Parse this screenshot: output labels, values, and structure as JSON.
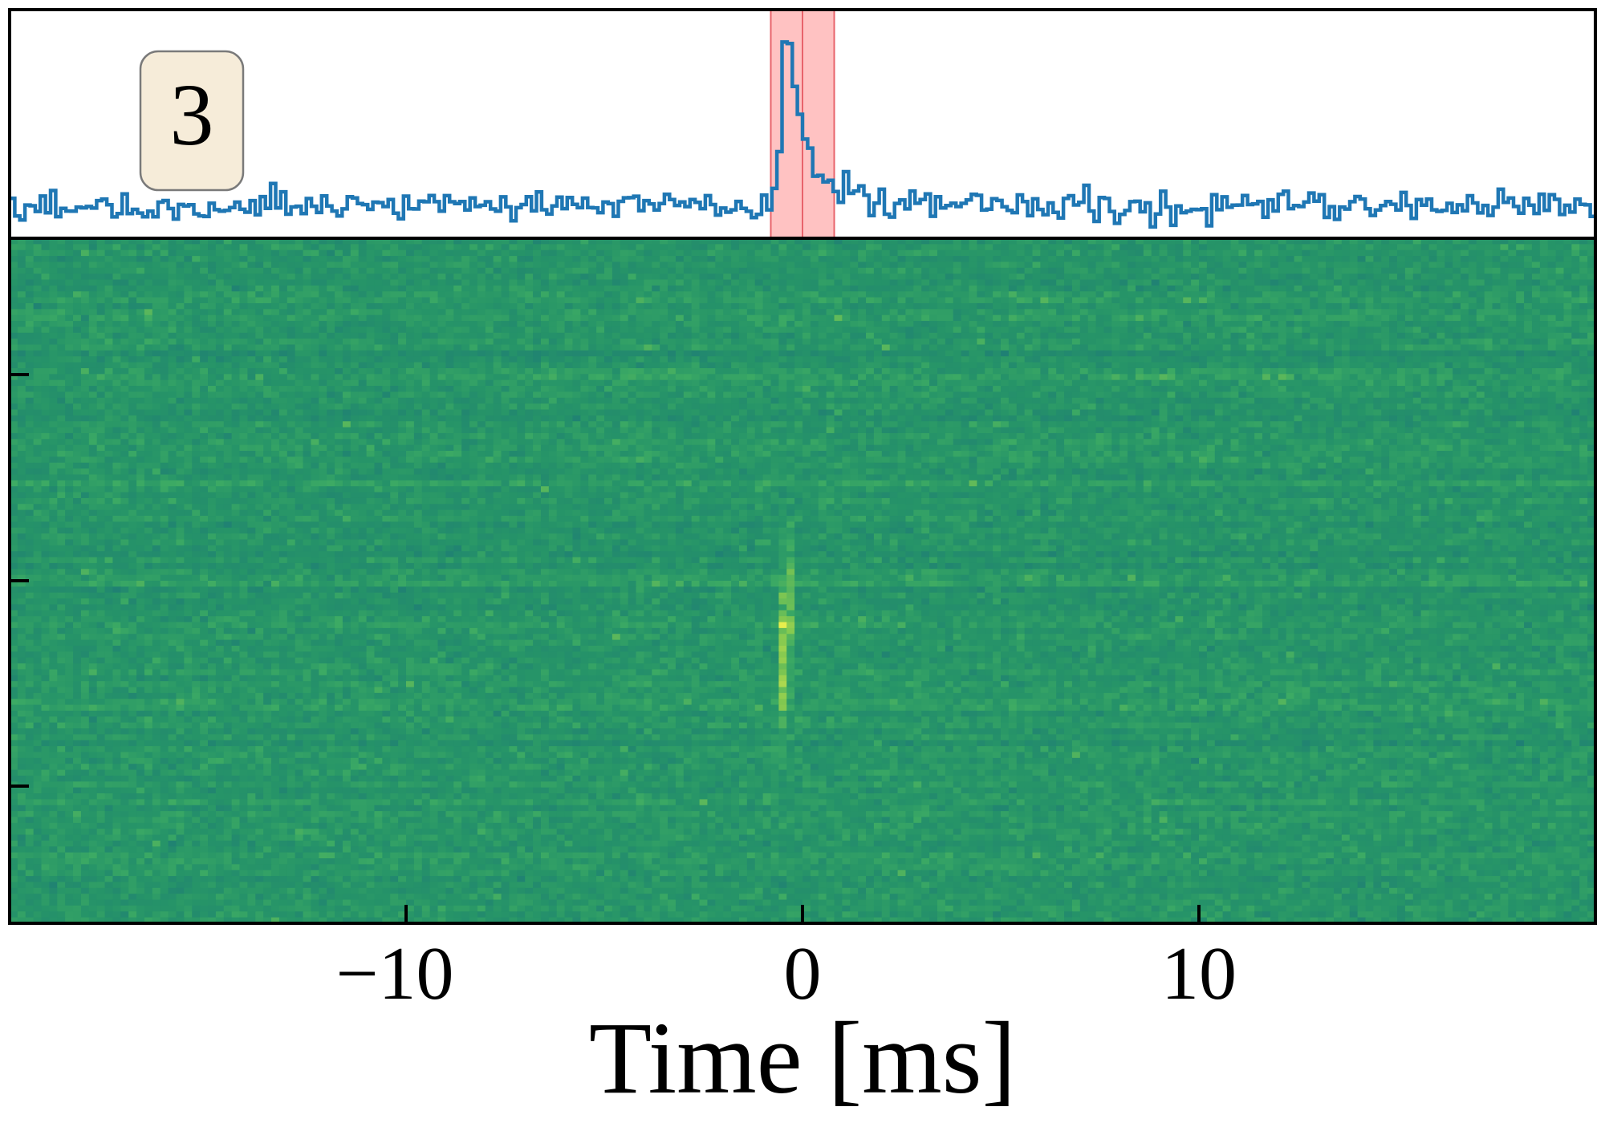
{
  "chart_data": {
    "type": "heatmap",
    "title": "",
    "panel_label": "3",
    "xlabel": "Time [ms]",
    "ylabel": "",
    "xlim": [
      -20,
      20
    ],
    "xticks": [
      -10,
      0,
      10
    ],
    "xtick_labels": [
      "−10",
      "0",
      "10"
    ],
    "yticks_count": 3,
    "yticks_labeled": false,
    "grid": false,
    "burst": {
      "center_ms": -0.3,
      "time_profile_peak_ms": -0.4,
      "highlight_window_ms": [
        -0.8,
        0.8
      ],
      "highlight_center_ms": 0.0
    },
    "colors": {
      "profile_line": "#1f77b4",
      "highlight_fill": "#ff9999",
      "highlight_line": "#e8636b",
      "heatmap_background": "#2a9866",
      "heatmap_peak": "#f4f44e",
      "label_box_fill": "#f6ecd9",
      "label_box_edge": "#7a7a7a"
    }
  }
}
